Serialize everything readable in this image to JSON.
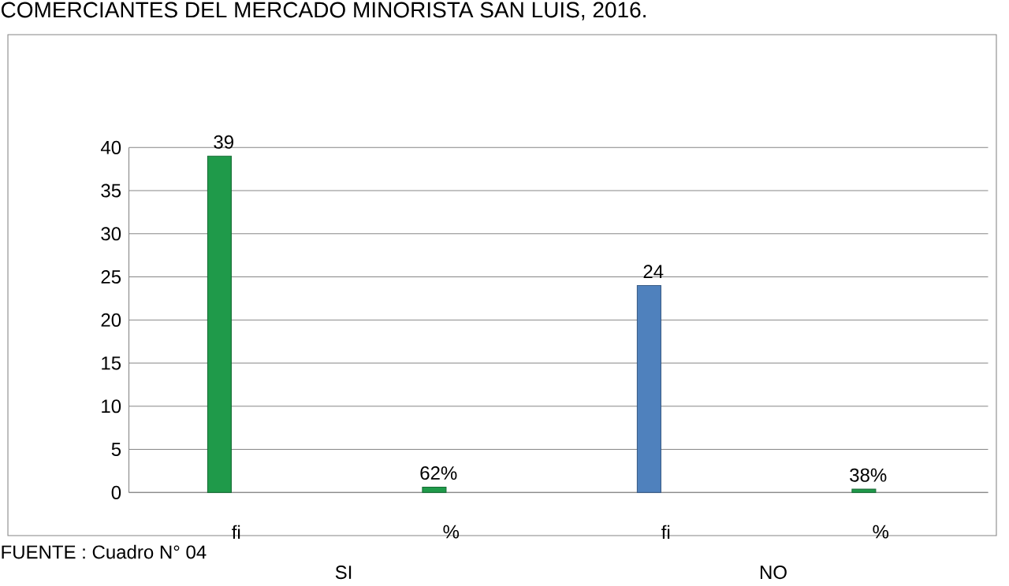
{
  "chart_data": {
    "type": "bar",
    "title": "COMERCIANTES DEL MERCADO MINORISTA  SAN LUIS, 2016.",
    "categories": [
      "fi",
      "%",
      "fi",
      "%"
    ],
    "values": [
      39,
      0.62,
      24,
      0.38
    ],
    "colors": [
      "#1f9a4a",
      "#1f9a4a",
      "#4f81bd",
      "#1f9a4a"
    ],
    "value_labels": [
      "39",
      "62%",
      "24",
      "38%"
    ],
    "ylim": [
      0,
      40
    ],
    "yticks": [
      0,
      5,
      10,
      15,
      20,
      25,
      30,
      35,
      40
    ],
    "grid": "y",
    "annotations": [
      "SI",
      "NO",
      "FUENTE          : Cuadro N° 04"
    ]
  }
}
